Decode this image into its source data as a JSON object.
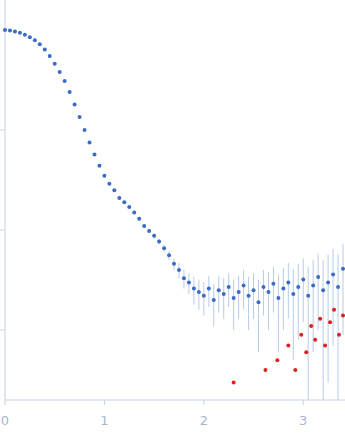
{
  "chart_data": {
    "type": "scatter",
    "log": "y",
    "tick_labels": "x",
    "grid": false,
    "marker": "circle",
    "xlim": [
      0,
      3.42
    ],
    "xticks": [
      0,
      1,
      2,
      3
    ],
    "ylim": [
      0.0002,
      2
    ],
    "yticks": [
      0.001,
      0.01,
      0.1
    ],
    "series": [
      {
        "color": "#3a6cc4",
        "x": [
          0,
          0.05,
          0.1,
          0.15,
          0.2,
          0.25,
          0.3,
          0.35,
          0.4,
          0.45,
          0.5,
          0.55,
          0.6,
          0.65,
          0.7,
          0.75,
          0.8,
          0.85,
          0.9,
          0.95,
          1,
          1.05,
          1.1,
          1.15,
          1.2,
          1.25,
          1.3,
          1.35,
          1.4,
          1.45,
          1.5,
          1.55,
          1.6,
          1.65,
          1.7,
          1.75,
          1.8,
          1.85,
          1.9,
          1.95,
          2,
          2.05,
          2.1,
          2.15,
          2.2,
          2.25,
          2.3,
          2.35,
          2.4,
          2.45,
          2.5,
          2.55,
          2.6,
          2.65,
          2.7,
          2.75,
          2.8,
          2.85,
          2.9,
          2.95,
          3,
          3.05,
          3.1,
          3.15,
          3.2,
          3.25,
          3.3,
          3.35,
          3.4
        ],
        "values": [
          1.0,
          0.99,
          0.97,
          0.94,
          0.9,
          0.85,
          0.79,
          0.72,
          0.64,
          0.55,
          0.46,
          0.38,
          0.31,
          0.24,
          0.18,
          0.135,
          0.1,
          0.075,
          0.057,
          0.044,
          0.035,
          0.029,
          0.025,
          0.021,
          0.019,
          0.017,
          0.015,
          0.013,
          0.011,
          0.0098,
          0.0088,
          0.0077,
          0.0066,
          0.0056,
          0.0046,
          0.004,
          0.0033,
          0.003,
          0.0026,
          0.0024,
          0.0022,
          0.0026,
          0.002,
          0.0025,
          0.0023,
          0.0027,
          0.0021,
          0.0024,
          0.0028,
          0.0022,
          0.0025,
          0.0019,
          0.0027,
          0.0024,
          0.0029,
          0.0021,
          0.0026,
          0.003,
          0.0023,
          0.0027,
          0.0032,
          0.0022,
          0.0028,
          0.0034,
          0.0025,
          0.003,
          0.0036,
          0.0027,
          0.0041
        ],
        "errors": [
          0.005,
          0.005,
          0.005,
          0.005,
          0.004,
          0.004,
          0.004,
          0.004,
          0.003,
          0.003,
          0.003,
          0.003,
          0.002,
          0.002,
          0.002,
          0.002,
          0.0015,
          0.0012,
          0.001,
          0.0009,
          0.0008,
          0.0007,
          0.0006,
          0.0006,
          0.0005,
          0.0005,
          0.0005,
          0.0005,
          0.0005,
          0.0005,
          0.0005,
          0.0005,
          0.0006,
          0.0006,
          0.0006,
          0.0007,
          0.0007,
          0.0007,
          0.0008,
          0.0008,
          0.0008,
          0.0009,
          0.0009,
          0.001,
          0.001,
          0.001,
          0.0011,
          0.0011,
          0.0012,
          0.0012,
          0.0012,
          0.0013,
          0.0013,
          0.0014,
          0.0014,
          0.0015,
          0.0016,
          0.0017,
          0.0018,
          0.0019,
          0.002,
          0.0021,
          0.0022,
          0.0024,
          0.0025,
          0.0027,
          0.0029,
          0.003,
          0.0032
        ]
      },
      {
        "color": "#e02020",
        "x": [
          2.3,
          2.62,
          2.74,
          2.85,
          2.92,
          2.98,
          3.03,
          3.08,
          3.12,
          3.17,
          3.22,
          3.27,
          3.31,
          3.36,
          3.4
        ],
        "values": [
          0.0003,
          0.0004,
          0.0005,
          0.0007,
          0.0004,
          0.0009,
          0.0006,
          0.0011,
          0.0008,
          0.0013,
          0.0007,
          0.0012,
          0.0016,
          0.0009,
          0.0014
        ]
      }
    ]
  }
}
